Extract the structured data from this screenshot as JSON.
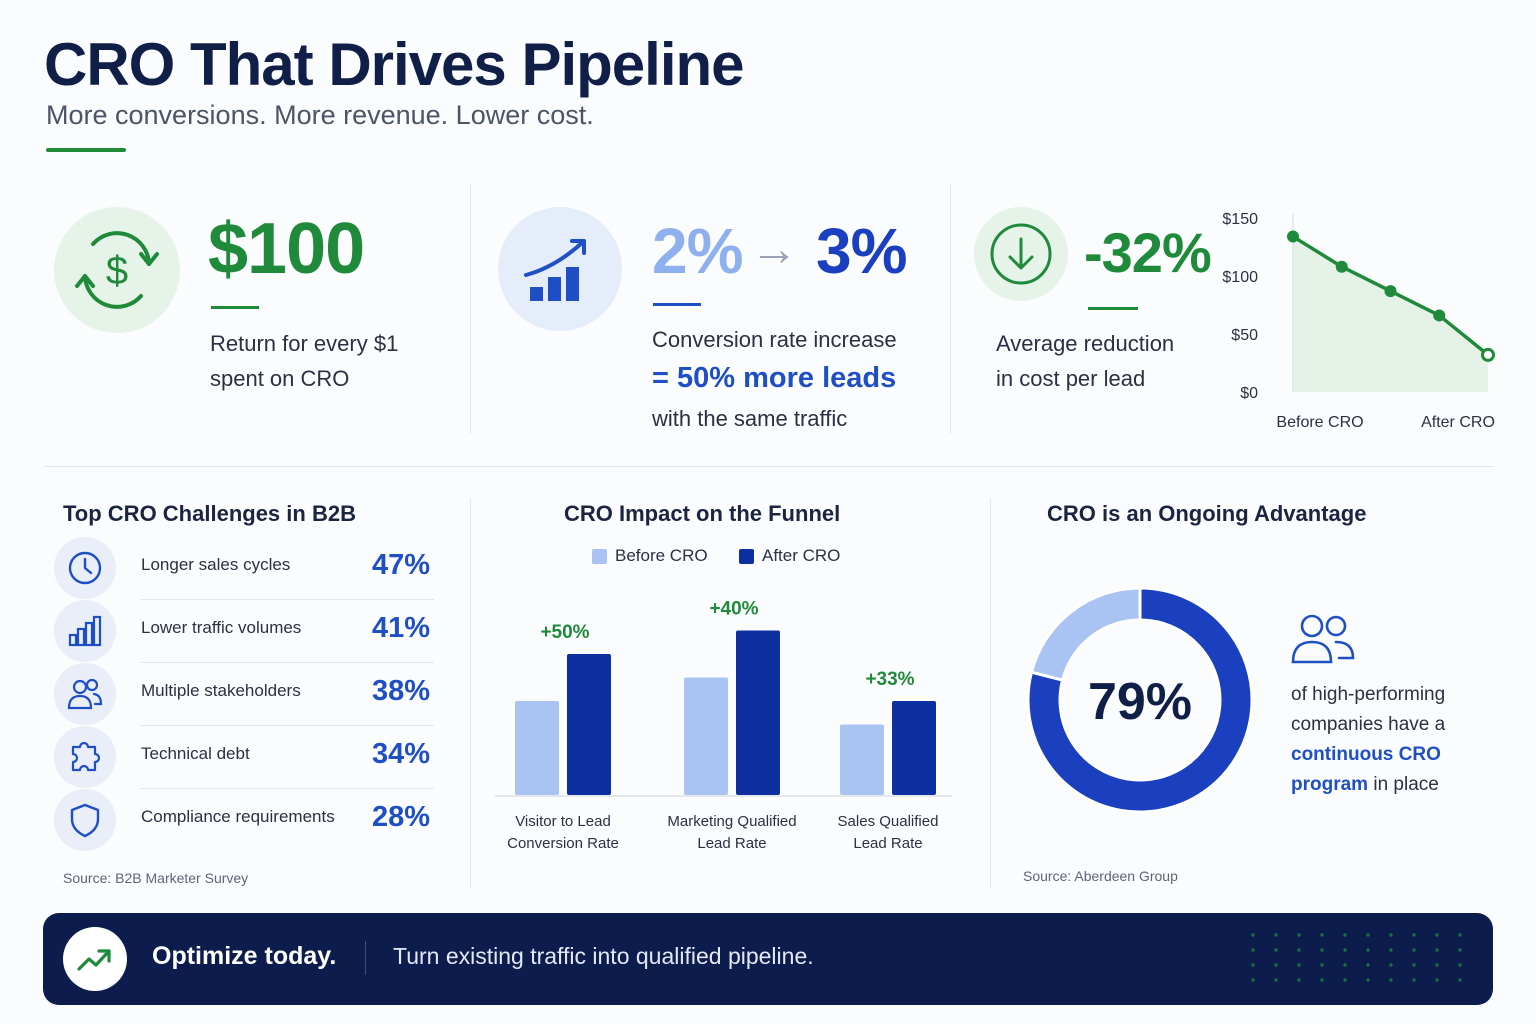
{
  "header": {
    "title": "CRO That Drives Pipeline",
    "subtitle": "More conversions. More revenue. Lower cost."
  },
  "stats": {
    "roi": {
      "value": "$100",
      "line1": "Return for every $1",
      "line2": "spent on CRO",
      "icon": "dollar-cycle-icon"
    },
    "conversion": {
      "from": "2%",
      "arrow": "→",
      "to": "3%",
      "line1": "Conversion rate increase",
      "line2": "= 50% more leads",
      "line3": "with the same traffic",
      "icon": "growth-chart-icon"
    },
    "cost": {
      "value": "-32%",
      "line1": "Average reduction",
      "line2": "in cost per lead",
      "icon": "down-arrow-icon"
    }
  },
  "colors": {
    "green": "#1f8a3a",
    "navy": "#0f1f47",
    "blue": "#1f4fc4",
    "light_blue": "#a9c3f3",
    "dark_blue": "#0d2fa0",
    "footer_bg": "#0c1d4d"
  },
  "challenges": {
    "title": "Top CRO Challenges in B2B",
    "items": [
      {
        "label": "Longer sales cycles",
        "value": "47%",
        "icon": "clock-icon"
      },
      {
        "label": "Lower traffic volumes",
        "value": "41%",
        "icon": "bar-chart-icon"
      },
      {
        "label": "Multiple stakeholders",
        "value": "38%",
        "icon": "people-icon"
      },
      {
        "label": "Technical debt",
        "value": "34%",
        "icon": "puzzle-icon"
      },
      {
        "label": "Compliance requirements",
        "value": "28%",
        "icon": "shield-icon"
      }
    ],
    "source": "Source: B2B Marketer Survey"
  },
  "funnel": {
    "title": "CRO Impact on the Funnel",
    "legend_before": "Before CRO",
    "legend_after": "After CRO",
    "categories": [
      {
        "line1": "Visitor to Lead",
        "line2": "Conversion Rate",
        "lift": "+50%"
      },
      {
        "line1": "Marketing Qualified",
        "line2": "Lead Rate",
        "lift": "+40%"
      },
      {
        "line1": "Sales Qualified",
        "line2": "Lead Rate",
        "lift": "+33%"
      }
    ]
  },
  "ongoing": {
    "title": "CRO is an Ongoing Advantage",
    "value": "79%",
    "text1": "of high-performing",
    "text2": "companies have a",
    "text3_highlight": "continuous CRO",
    "text4_highlight": "program",
    "text4_rest": " in place",
    "source": "Source: Aberdeen Group",
    "icon": "people-icon"
  },
  "footer": {
    "headline": "Optimize today.",
    "text": "Turn existing traffic into qualified pipeline.",
    "icon": "trend-up-icon"
  },
  "chart_data": [
    {
      "type": "area",
      "title": "",
      "x": [
        "Before CRO",
        "",
        "",
        "",
        "After CRO"
      ],
      "series": [
        {
          "values": [
            134,
            108,
            87,
            66,
            32
          ]
        }
      ],
      "y_ticks": [
        "$0",
        "$50",
        "$100",
        "$150"
      ],
      "x_tick_labels": [
        "Before CRO",
        "After CRO"
      ],
      "ylim": [
        0,
        150
      ],
      "grid": false
    },
    {
      "type": "bar",
      "title": "CRO Impact on the Funnel",
      "categories": [
        "Visitor to Lead Conversion Rate",
        "Marketing Qualified Lead Rate",
        "Sales Qualified Lead Rate"
      ],
      "series": [
        {
          "name": "Before CRO",
          "values": [
            2.0,
            2.5,
            1.5
          ]
        },
        {
          "name": "After CRO",
          "values": [
            3.0,
            3.5,
            2.0
          ]
        }
      ],
      "annotations": [
        "+50%",
        "+40%",
        "+33%"
      ],
      "legend": "top-center",
      "grid": false
    },
    {
      "type": "pie",
      "title": "CRO is an Ongoing Advantage",
      "values": [
        79,
        21
      ],
      "center_label": "79%"
    }
  ]
}
